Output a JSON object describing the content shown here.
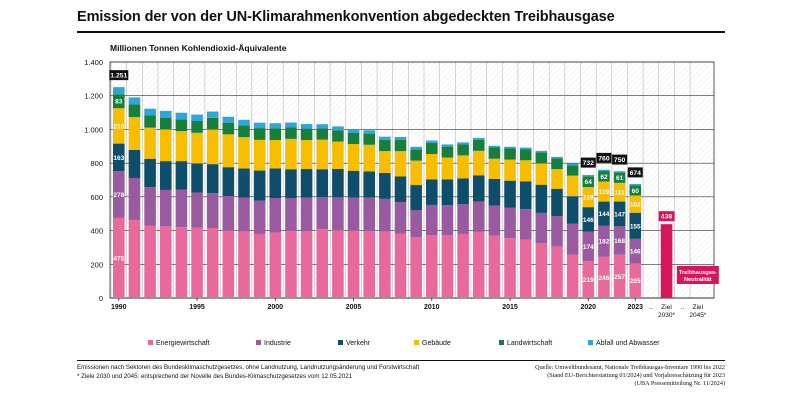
{
  "header": {
    "title": "Emission der von der UN-Klimarahmenkonvention abgedeckten Treibhausgase"
  },
  "footnotes": {
    "left_line1": "Emissionen nach Sektoren des Bundesklimaschutzgesetzes, ohne Landnutzung, Landnutzungsänderung und Forstwirtschaft",
    "left_line2": "* Ziele 2030 und 2045: entsprechend der Novelle des Bundes-Klimaschutzgesetzes vom 12.05.2021",
    "right_line1": "Quelle: Umweltbundesamt, Nationale Treibhausgas-Inventare 1990 bis 2022",
    "right_line2": "(Stand EU-Berichterstattung 01/2024) und Vorjahresschätzung für 2023",
    "right_line3": "(UBA Pressemitteilung Nr. 11/2024)"
  },
  "chart_data": {
    "type": "bar",
    "stacked": true,
    "title": "Emission der von der UN-Klimarahmenkonvention abgedeckten Treibhausgase",
    "ylabel": "Millionen Tonnen Kohlendioxid-Äquivalente",
    "xlabel": "",
    "ylim": [
      0,
      1400
    ],
    "yticks": [
      0,
      200,
      400,
      600,
      800,
      1000,
      1200,
      1400
    ],
    "ytick_labels": [
      "0",
      "200",
      "400",
      "600",
      "800",
      "1.000",
      "1.200",
      "1.400"
    ],
    "categories": [
      1990,
      1991,
      1992,
      1993,
      1994,
      1995,
      1996,
      1997,
      1998,
      1999,
      2000,
      2001,
      2002,
      2003,
      2004,
      2005,
      2006,
      2007,
      2008,
      2009,
      2010,
      2011,
      2012,
      2013,
      2014,
      2015,
      2016,
      2017,
      2018,
      2019,
      2020,
      2021,
      2022,
      2023
    ],
    "xtick_labels": [
      "1990",
      "1995",
      "2000",
      "2005",
      "2010",
      "2015",
      "2020",
      "2023"
    ],
    "series": [
      {
        "name": "Energiewirtschaft",
        "color": "#e76a9b",
        "values": [
          475,
          462,
          430,
          425,
          420,
          418,
          415,
          400,
          395,
          380,
          388,
          397,
          398,
          408,
          402,
          400,
          398,
          395,
          382,
          360,
          372,
          372,
          380,
          392,
          370,
          355,
          346,
          325,
          306,
          258,
          219,
          246,
          257,
          205
        ]
      },
      {
        "name": "Industrie",
        "color": "#9a5aa0",
        "values": [
          278,
          250,
          228,
          216,
          222,
          208,
          207,
          205,
          200,
          198,
          205,
          195,
          197,
          190,
          195,
          196,
          197,
          193,
          187,
          160,
          180,
          178,
          176,
          180,
          178,
          180,
          181,
          180,
          180,
          182,
          174,
          182,
          168,
          146
        ]
      },
      {
        "name": "Verkehr",
        "color": "#0e4e6b",
        "values": [
          163,
          166,
          168,
          171,
          170,
          172,
          172,
          171,
          173,
          178,
          176,
          172,
          170,
          166,
          169,
          159,
          156,
          154,
          152,
          150,
          152,
          153,
          153,
          156,
          158,
          161,
          164,
          167,
          162,
          164,
          146,
          144,
          147,
          155
        ]
      },
      {
        "name": "Gebäude",
        "color": "#f7bd00",
        "values": [
          210,
          195,
          185,
          188,
          178,
          182,
          205,
          195,
          186,
          182,
          168,
          180,
          172,
          175,
          162,
          158,
          158,
          130,
          150,
          145,
          150,
          130,
          137,
          145,
          120,
          125,
          126,
          127,
          117,
          122,
          119,
          119,
          111,
          102
        ]
      },
      {
        "name": "Landwirtschaft",
        "color": "#177f3b",
        "values": [
          83,
          76,
          72,
          70,
          70,
          70,
          70,
          69,
          69,
          70,
          70,
          69,
          68,
          67,
          67,
          66,
          66,
          67,
          68,
          67,
          66,
          65,
          65,
          66,
          67,
          66,
          66,
          65,
          63,
          62,
          64,
          62,
          61,
          60
        ]
      },
      {
        "name": "Abfall und Abwasser",
        "color": "#2ea6d8",
        "values": [
          42,
          41,
          40,
          40,
          39,
          38,
          37,
          35,
          34,
          32,
          30,
          28,
          27,
          25,
          23,
          22,
          20,
          18,
          16,
          15,
          14,
          13,
          12,
          11,
          10,
          10,
          9,
          9,
          9,
          9,
          8,
          8,
          8,
          8
        ]
      }
    ],
    "totals": [
      {
        "year": 1990,
        "label": "1.251",
        "value": 1251
      },
      {
        "year": 2020,
        "label": "732",
        "value": 732
      },
      {
        "year": 2021,
        "label": "760",
        "value": 760
      },
      {
        "year": 2022,
        "label": "750",
        "value": 750
      },
      {
        "year": 2023,
        "label": "674",
        "value": 674
      }
    ],
    "data_labels": [
      {
        "year": 1990,
        "series": "Energiewirtschaft",
        "label": "475"
      },
      {
        "year": 1990,
        "series": "Industrie",
        "label": "278"
      },
      {
        "year": 1990,
        "series": "Verkehr",
        "label": "163"
      },
      {
        "year": 1990,
        "series": "Gebäude",
        "label": "210"
      },
      {
        "year": 1990,
        "series": "Landwirtschaft",
        "label": "83"
      },
      {
        "year": 2020,
        "series": "Energiewirtschaft",
        "label": "219"
      },
      {
        "year": 2020,
        "series": "Industrie",
        "label": "174"
      },
      {
        "year": 2020,
        "series": "Verkehr",
        "label": "146"
      },
      {
        "year": 2020,
        "series": "Gebäude",
        "label": "119"
      },
      {
        "year": 2020,
        "series": "Landwirtschaft",
        "label": "64"
      },
      {
        "year": 2021,
        "series": "Energiewirtschaft",
        "label": "246"
      },
      {
        "year": 2021,
        "series": "Industrie",
        "label": "182"
      },
      {
        "year": 2021,
        "series": "Verkehr",
        "label": "144"
      },
      {
        "year": 2021,
        "series": "Gebäude",
        "label": "119"
      },
      {
        "year": 2021,
        "series": "Landwirtschaft",
        "label": "62"
      },
      {
        "year": 2022,
        "series": "Energiewirtschaft",
        "label": "257"
      },
      {
        "year": 2022,
        "series": "Industrie",
        "label": "168"
      },
      {
        "year": 2022,
        "series": "Verkehr",
        "label": "147"
      },
      {
        "year": 2022,
        "series": "Gebäude",
        "label": "111"
      },
      {
        "year": 2022,
        "series": "Landwirtschaft",
        "label": "61"
      },
      {
        "year": 2023,
        "series": "Energiewirtschaft",
        "label": "205"
      },
      {
        "year": 2023,
        "series": "Industrie",
        "label": "146"
      },
      {
        "year": 2023,
        "series": "Verkehr",
        "label": "155"
      },
      {
        "year": 2023,
        "series": "Gebäude",
        "label": "102"
      },
      {
        "year": 2023,
        "series": "Landwirtschaft",
        "label": "60"
      }
    ],
    "targets": [
      {
        "label_line1": "Ziel",
        "label_line2": "2030*",
        "value": 438,
        "value_label": "438",
        "color": "#d6155a"
      },
      {
        "label_line1": "Ziel",
        "label_line2": "2045*",
        "value": 0,
        "value_label": "",
        "badge_line1": "Treibhausgas-",
        "badge_line2": "Neutralität",
        "color": "#d6155a"
      }
    ],
    "gap_marker": "..",
    "legend_position": "bottom",
    "grid": "horizontal"
  }
}
